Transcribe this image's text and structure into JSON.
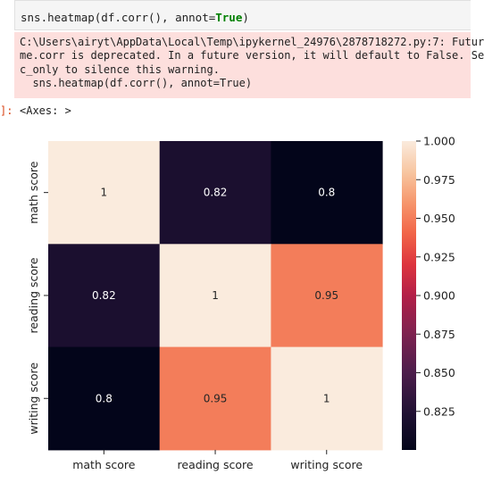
{
  "code_cell": {
    "code_prefix": "sns.heatmap(df.corr(), annot=",
    "code_true": "True",
    "code_suffix": ")"
  },
  "stderr": {
    "lines": [
      "C:\\Users\\airyt\\AppData\\Local\\Temp\\ipykernel_24976\\2878718272.py:7: Futur",
      "me.corr is deprecated. In a future version, it will default to False. Se",
      "c_only to silence this warning.",
      "  sns.heatmap(df.corr(), annot=True)"
    ]
  },
  "output": {
    "prompt": "]:",
    "repr": "<Axes: >"
  },
  "colors": {
    "stderr_bg": "#fddfdd",
    "prompt": "#d84315"
  },
  "chart_data": {
    "type": "heatmap",
    "title": "",
    "xlabel": "",
    "ylabel": "",
    "x_categories": [
      "math score",
      "reading score",
      "writing score"
    ],
    "y_categories": [
      "math score",
      "reading score",
      "writing score"
    ],
    "values": [
      [
        1.0,
        0.82,
        0.8
      ],
      [
        0.82,
        1.0,
        0.95
      ],
      [
        0.8,
        0.95,
        1.0
      ]
    ],
    "annotations": [
      [
        "1",
        "0.82",
        "0.8"
      ],
      [
        "0.82",
        "1",
        "0.95"
      ],
      [
        "0.8",
        "0.95",
        "1"
      ]
    ],
    "colorbar": {
      "vmin": 0.8,
      "vmax": 1.0,
      "ticks": [
        0.825,
        0.85,
        0.875,
        0.9,
        0.925,
        0.95,
        0.975,
        1.0
      ],
      "tick_labels": [
        "0.825",
        "0.850",
        "0.875",
        "0.900",
        "0.925",
        "0.950",
        "0.975",
        "1.000"
      ],
      "colormap": "rocket"
    }
  }
}
